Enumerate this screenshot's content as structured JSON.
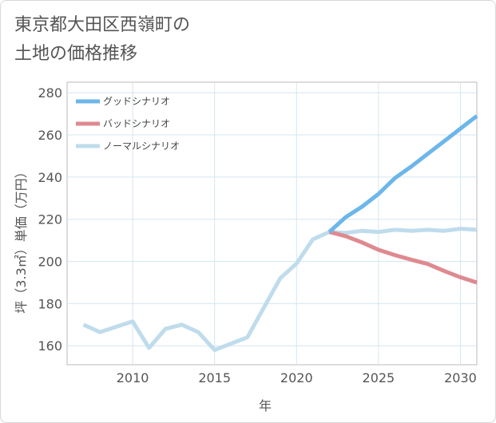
{
  "title_line1": "東京都大田区西嶺町の",
  "title_line2": "土地の価格推移",
  "chart_data": {
    "type": "line",
    "xlabel": "年",
    "ylabel": "坪（3.3㎡）単価（万円）",
    "xlim": [
      2006,
      2031
    ],
    "ylim": [
      151,
      285
    ],
    "x_ticks": [
      2010,
      2015,
      2020,
      2025,
      2030
    ],
    "y_ticks": [
      160,
      180,
      200,
      220,
      240,
      260,
      280
    ],
    "grid": true,
    "legend_position": "top-left",
    "series": [
      {
        "name": "グッドシナリオ",
        "color": "#6db6ea",
        "x": [
          2022,
          2023,
          2024,
          2025,
          2026,
          2027,
          2028,
          2029,
          2030,
          2031
        ],
        "values": [
          214,
          221,
          226,
          232,
          239.5,
          245,
          251,
          257,
          263,
          269
        ]
      },
      {
        "name": "バッドシナリオ",
        "color": "#de8a90",
        "x": [
          2022,
          2023,
          2024,
          2025,
          2026,
          2027,
          2028,
          2029,
          2030,
          2031
        ],
        "values": [
          214,
          212,
          209,
          205.5,
          203,
          200.8,
          198.8,
          195.5,
          192.5,
          190
        ]
      },
      {
        "name": "ノーマルシナリオ",
        "color": "#bfdcec",
        "x": [
          2007,
          2008,
          2009,
          2010,
          2011,
          2012,
          2013,
          2014,
          2015,
          2016,
          2017,
          2018,
          2019,
          2020,
          2021,
          2022,
          2023,
          2024,
          2025,
          2026,
          2027,
          2028,
          2029,
          2030,
          2031
        ],
        "values": [
          170,
          166.5,
          169,
          171.5,
          159,
          168,
          170,
          166.5,
          158,
          161,
          164,
          178,
          192,
          199,
          210.5,
          214,
          213.5,
          214.5,
          214,
          215,
          214.5,
          215,
          214.5,
          215.5,
          215
        ]
      }
    ]
  }
}
